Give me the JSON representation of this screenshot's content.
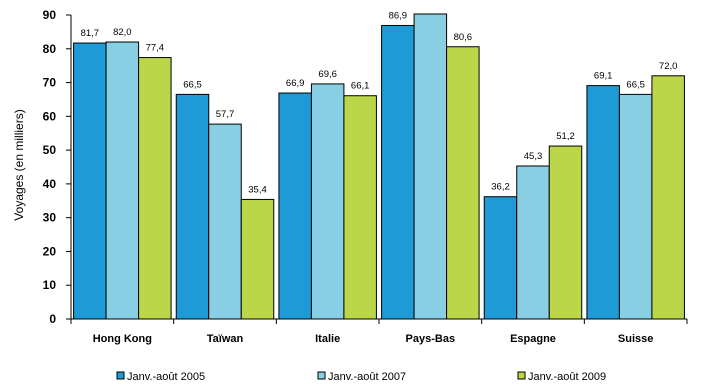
{
  "chart_data": {
    "type": "bar",
    "title": "",
    "xlabel": "",
    "ylabel": "Voyages (en milliers)",
    "ylim": [
      0,
      90
    ],
    "yticks": [
      0,
      10,
      20,
      30,
      40,
      50,
      60,
      70,
      80,
      90
    ],
    "grid": false,
    "legend_position": "bottom",
    "categories": [
      "Hong Kong",
      "Taïwan",
      "Italie",
      "Pays-Bas",
      "Espagne",
      "Suisse"
    ],
    "series": [
      {
        "name": "Janv.-août 2005",
        "color": "#1e9ad6",
        "values": [
          81.7,
          66.5,
          66.9,
          86.9,
          36.2,
          69.1
        ],
        "labels": [
          "81,7",
          "66,5",
          "66,9",
          "86,9",
          "36,2",
          "69,1"
        ]
      },
      {
        "name": "Janv.-août 2007",
        "color": "#88cfe3",
        "values": [
          82.0,
          57.7,
          69.6,
          90.3,
          45.3,
          66.5
        ],
        "labels": [
          "82,0",
          "57,7",
          "69,6",
          "",
          "45,3",
          "66,5"
        ]
      },
      {
        "name": "Janv.-août 2009",
        "color": "#bcd64a",
        "values": [
          77.4,
          35.4,
          66.1,
          80.6,
          51.2,
          72.0
        ],
        "labels": [
          "77,4",
          "35,4",
          "66,1",
          "80,6",
          "51,2",
          "72,0"
        ]
      }
    ]
  }
}
